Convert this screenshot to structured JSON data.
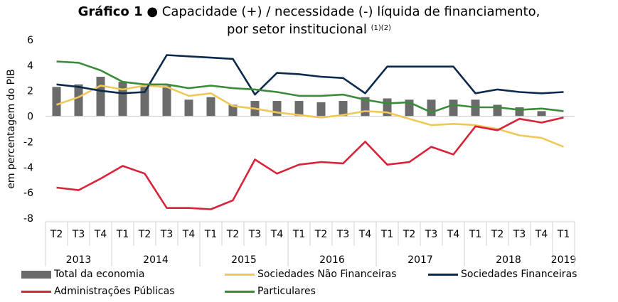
{
  "title": {
    "bold": "Gráfico 1",
    "bullet": "●",
    "line1": "Capacidade (+) / necessidade (-) líquida de financiamento,",
    "line2": "por setor institucional",
    "notes": "(1)(2)"
  },
  "chart_data": {
    "type": "bar+line",
    "ylabel": "em percentagem do PIB",
    "ylim": [
      -8,
      6
    ],
    "yticks": [
      "6",
      "4",
      "2",
      "0",
      "-2",
      "-4",
      "-6",
      "-8"
    ],
    "quarters": [
      "T2",
      "T3",
      "T4",
      "T1",
      "T2",
      "T3",
      "T4",
      "T1",
      "T2",
      "T3",
      "T4",
      "T1",
      "T2",
      "T3",
      "T4",
      "T1",
      "T2",
      "T3",
      "T4",
      "T1",
      "T2",
      "T3",
      "T4",
      "T1"
    ],
    "years": [
      {
        "label": "2013",
        "span": 3
      },
      {
        "label": "2014",
        "span": 4
      },
      {
        "label": "2015",
        "span": 4
      },
      {
        "label": "2016",
        "span": 4
      },
      {
        "label": "2017",
        "span": 4
      },
      {
        "label": "2018",
        "span": 4
      },
      {
        "label": "2019",
        "span": 1
      }
    ],
    "bars": {
      "name": "Total da economia",
      "color": "#6b6b6b",
      "values": [
        2.3,
        2.5,
        3.1,
        2.7,
        2.3,
        2.4,
        1.3,
        1.5,
        0.9,
        1.2,
        1.2,
        1.2,
        1.1,
        1.2,
        1.5,
        1.4,
        1.3,
        1.3,
        1.3,
        1.3,
        0.9,
        0.7,
        0.4,
        0.0
      ]
    },
    "series": [
      {
        "name": "Sociedades Não Financeiras",
        "color": "#f0c85a",
        "values": [
          0.9,
          1.5,
          2.4,
          2.1,
          2.4,
          2.3,
          1.6,
          1.8,
          0.8,
          0.6,
          0.3,
          0.1,
          -0.1,
          0.1,
          0.4,
          0.3,
          -0.2,
          -0.7,
          -0.6,
          -0.7,
          -1.0,
          -1.5,
          -1.7,
          -2.4
        ]
      },
      {
        "name": "Sociedades Financeiras",
        "color": "#0c2a4c",
        "values": [
          2.5,
          2.3,
          2.0,
          1.8,
          1.9,
          4.8,
          4.7,
          4.6,
          4.5,
          1.7,
          3.4,
          3.3,
          3.1,
          3.0,
          1.8,
          3.9,
          3.9,
          3.9,
          3.9,
          1.8,
          2.1,
          1.9,
          1.8,
          1.9
        ]
      },
      {
        "name": "Administrações Públicas",
        "color": "#d8243a",
        "values": [
          -5.6,
          -5.8,
          -4.9,
          -3.9,
          -4.5,
          -7.2,
          -7.2,
          -7.3,
          -6.6,
          -3.4,
          -4.5,
          -3.8,
          -3.6,
          -3.7,
          -2.0,
          -3.8,
          -3.6,
          -2.4,
          -3.0,
          -0.8,
          -1.1,
          -0.2,
          -0.5,
          -0.1
        ]
      },
      {
        "name": "Particulares",
        "color": "#3a8c3a",
        "values": [
          4.3,
          4.2,
          3.6,
          2.7,
          2.5,
          2.5,
          2.2,
          2.4,
          2.2,
          2.1,
          1.9,
          1.6,
          1.6,
          1.7,
          1.3,
          1.0,
          1.1,
          0.3,
          0.9,
          0.7,
          0.7,
          0.5,
          0.6,
          0.4
        ]
      }
    ]
  },
  "legend": [
    {
      "name": "Total da economia",
      "kind": "bar",
      "color": "#6b6b6b"
    },
    {
      "name": "Sociedades Não Financeiras",
      "kind": "line",
      "color": "#f0c85a"
    },
    {
      "name": "Sociedades Financeiras",
      "kind": "line",
      "color": "#0c2a4c"
    },
    {
      "name": "Administrações Públicas",
      "kind": "line",
      "color": "#d8243a"
    },
    {
      "name": "Particulares",
      "kind": "line",
      "color": "#3a8c3a"
    }
  ]
}
